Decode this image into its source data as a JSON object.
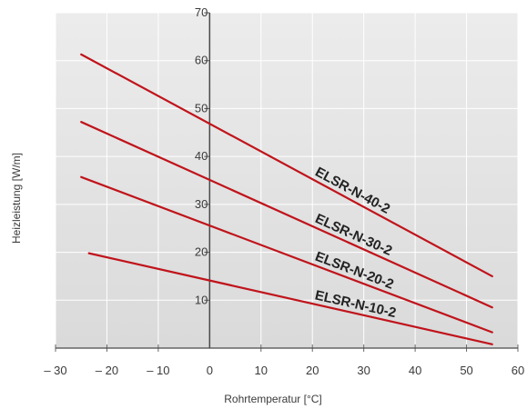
{
  "chart_data": {
    "type": "line",
    "title": "",
    "xlabel": "Rohrtemperatur [°C]",
    "ylabel": "Heizleistung [W/m]",
    "xlim": [
      -30,
      60
    ],
    "ylim": [
      0,
      70
    ],
    "x_ticks": [
      -30,
      -20,
      -10,
      0,
      10,
      20,
      30,
      40,
      50,
      60
    ],
    "x_tick_labels": [
      "– 30",
      "– 20",
      "– 10",
      "0",
      "10",
      "20",
      "30",
      "40",
      "50",
      "60"
    ],
    "y_ticks": [
      10,
      20,
      30,
      40,
      50,
      60,
      70
    ],
    "y_tick_labels": [
      "10",
      "20",
      "30",
      "40",
      "50",
      "60",
      "70"
    ],
    "grid": true,
    "legend": "none",
    "background": "#e2e2e2",
    "line_color": "#c0141b",
    "series": [
      {
        "name": "ELSR-N-40-2",
        "x": [
          -25,
          55
        ],
        "y": [
          61.3,
          15
        ]
      },
      {
        "name": "ELSR-N-30-2",
        "x": [
          -25,
          55
        ],
        "y": [
          47.2,
          8.5
        ]
      },
      {
        "name": "ELSR-N-20-2",
        "x": [
          -25,
          55
        ],
        "y": [
          35.7,
          3.3
        ]
      },
      {
        "name": "ELSR-N-10-2",
        "x": [
          -23.5,
          55
        ],
        "y": [
          19.8,
          0.8
        ]
      }
    ]
  }
}
